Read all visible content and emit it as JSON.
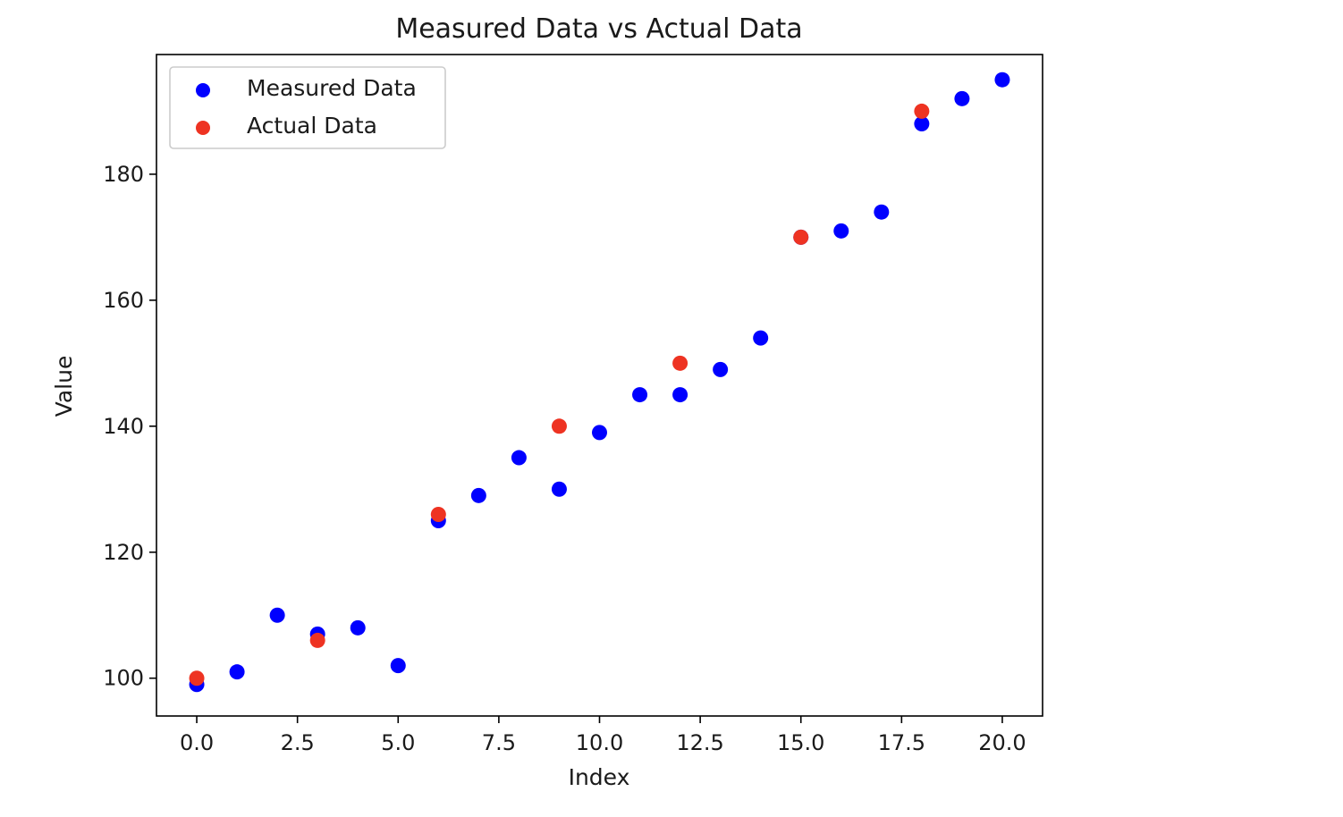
{
  "chart_data": {
    "type": "scatter",
    "title": "Measured Data vs Actual Data",
    "xlabel": "Index",
    "ylabel": "Value",
    "xlim": [
      -1,
      21
    ],
    "ylim": [
      94,
      199
    ],
    "xticks": [
      0.0,
      2.5,
      5.0,
      7.5,
      10.0,
      12.5,
      15.0,
      17.5,
      20.0
    ],
    "xtick_labels": [
      "0.0",
      "2.5",
      "5.0",
      "7.5",
      "10.0",
      "12.5",
      "15.0",
      "17.5",
      "20.0"
    ],
    "yticks": [
      100,
      120,
      140,
      160,
      180
    ],
    "ytick_labels": [
      "100",
      "120",
      "140",
      "160",
      "180"
    ],
    "grid": false,
    "legend_position": "top-left",
    "series": [
      {
        "name": "Measured Data",
        "color": "#0000ff",
        "x": [
          0,
          1,
          2,
          3,
          4,
          5,
          6,
          7,
          8,
          9,
          10,
          11,
          12,
          13,
          14,
          15,
          16,
          17,
          18,
          19,
          20
        ],
        "y": [
          99,
          101,
          110,
          107,
          108,
          102,
          125,
          129,
          135,
          130,
          139,
          145,
          145,
          149,
          154,
          170,
          171,
          174,
          188,
          192,
          195
        ]
      },
      {
        "name": "Actual Data",
        "color": "#ee3322",
        "x": [
          0,
          3,
          6,
          9,
          12,
          15,
          18
        ],
        "y": [
          100,
          106,
          126,
          140,
          150,
          170,
          190
        ]
      }
    ]
  }
}
